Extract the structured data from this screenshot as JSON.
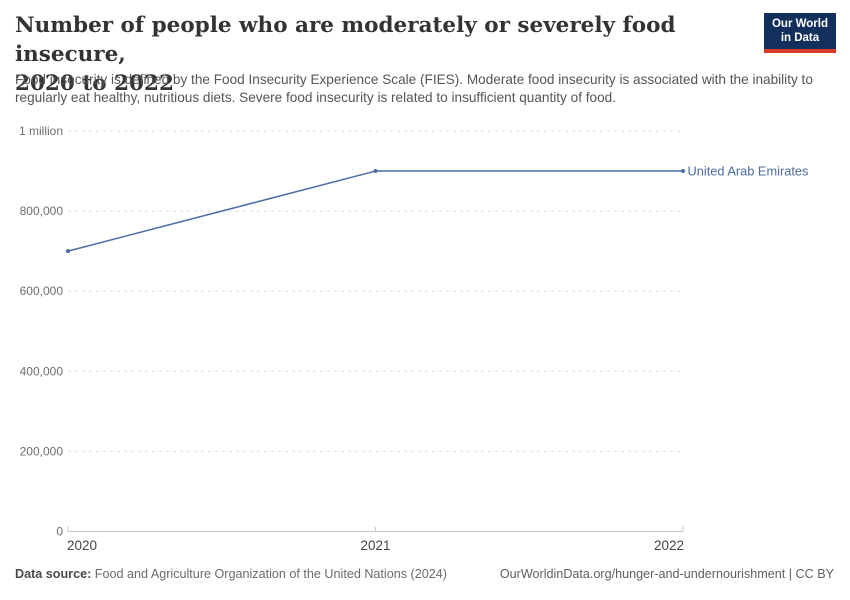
{
  "header": {
    "title_lines": [
      "Number of people who are moderately or severely food insecure,",
      "2020 to 2022"
    ],
    "subtitle": "Food insecurity is defined by the Food Insecurity Experience Scale (FIES). Moderate food insecurity is associated with the inability to regularly eat healthy, nutritious diets. Severe food insecurity is related to insufficient quantity of food.",
    "logo": {
      "line1": "Our World",
      "line2": "in Data",
      "bg_color": "#12305b",
      "accent_color": "#d93b2b"
    }
  },
  "chart_data": {
    "type": "line",
    "title": "Number of people who are moderately or severely food insecure, 2020 to 2022",
    "x": [
      2020,
      2021,
      2022
    ],
    "series": [
      {
        "name": "United Arab Emirates",
        "values": [
          700000,
          900000,
          900000
        ],
        "color": "#4c6ba3"
      }
    ],
    "xlabel": "",
    "ylabel": "",
    "xlim": [
      2020,
      2022
    ],
    "ylim": [
      0,
      1000000
    ],
    "yticks": [
      {
        "value": 0,
        "label": "0"
      },
      {
        "value": 200000,
        "label": "200,000"
      },
      {
        "value": 400000,
        "label": "400,000"
      },
      {
        "value": 600000,
        "label": "600,000"
      },
      {
        "value": 800000,
        "label": "800,000"
      },
      {
        "value": 1000000,
        "label": "1 million"
      }
    ],
    "xticks": [
      {
        "value": 2020,
        "label": "2020",
        "align": "start"
      },
      {
        "value": 2021,
        "label": "2021",
        "align": "middle"
      },
      {
        "value": 2022,
        "label": "2022",
        "align": "end"
      }
    ],
    "grid": "dashed-horizontal",
    "legend_position": "end-of-line-label"
  },
  "footer": {
    "datasource_label": "Data source:",
    "datasource_value": "Food and Agriculture Organization of the United Nations (2024)",
    "link": "OurWorldinData.org/hunger-and-undernourishment | CC BY"
  }
}
